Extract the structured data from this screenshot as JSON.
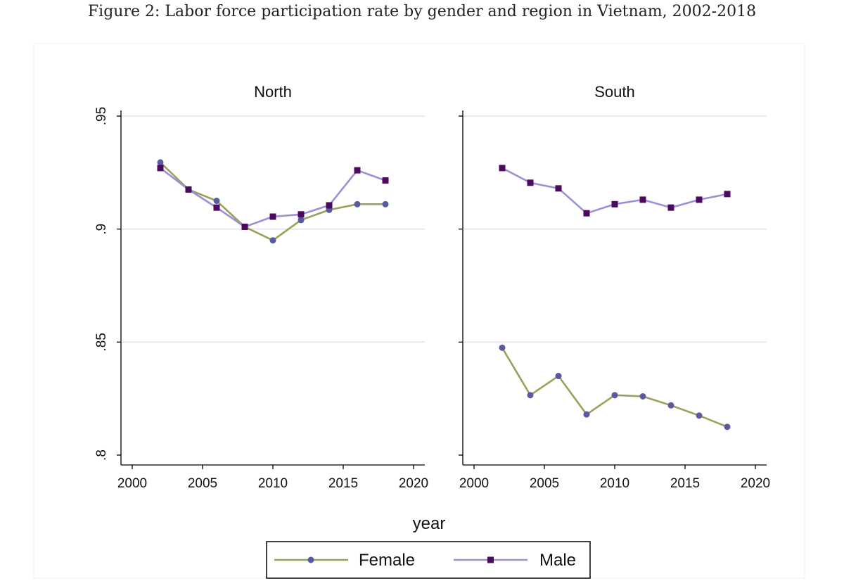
{
  "caption": "Figure 2: Labor force participation rate by gender and region in Vietnam, 2002-2018",
  "colors": {
    "female_line": "#9aa15a",
    "female_marker": "#5a5aa0",
    "male_line": "#9a90d6",
    "male_marker": "#4b0a5e",
    "grid": "#e3e3e3"
  },
  "chart_data": {
    "type": "line",
    "xlabel": "year",
    "ylabel": "",
    "xlim": [
      2000,
      2020
    ],
    "ylim": [
      0.8,
      0.95
    ],
    "xticks": [
      2000,
      2005,
      2010,
      2015,
      2020
    ],
    "xtick_labels": [
      "2000",
      "2005",
      "2010",
      "2015",
      "2020"
    ],
    "yticks": [
      0.8,
      0.85,
      0.9,
      0.95
    ],
    "ytick_labels": [
      ".8",
      ".85",
      ".9",
      ".95"
    ],
    "grid": true,
    "legend": {
      "placement": "bottom",
      "entries": [
        "Female",
        "Male"
      ]
    },
    "panels": [
      {
        "title": "North",
        "series": [
          {
            "name": "Female",
            "x": [
              2002,
              2004,
              2006,
              2008,
              2010,
              2012,
              2014,
              2016,
              2018
            ],
            "values": [
              0.9295,
              0.9175,
              0.9125,
              0.901,
              0.895,
              0.904,
              0.9085,
              0.911,
              0.911
            ]
          },
          {
            "name": "Male",
            "x": [
              2002,
              2004,
              2006,
              2008,
              2010,
              2012,
              2014,
              2016,
              2018
            ],
            "values": [
              0.927,
              0.9175,
              0.9095,
              0.901,
              0.9055,
              0.9065,
              0.9105,
              0.926,
              0.9215
            ]
          }
        ]
      },
      {
        "title": "South",
        "series": [
          {
            "name": "Female",
            "x": [
              2002,
              2004,
              2006,
              2008,
              2010,
              2012,
              2014,
              2016,
              2018
            ],
            "values": [
              0.8475,
              0.8265,
              0.835,
              0.818,
              0.8265,
              0.826,
              0.822,
              0.8175,
              0.8125
            ]
          },
          {
            "name": "Male",
            "x": [
              2002,
              2004,
              2006,
              2008,
              2010,
              2012,
              2014,
              2016,
              2018
            ],
            "values": [
              0.927,
              0.9205,
              0.918,
              0.907,
              0.911,
              0.913,
              0.9095,
              0.913,
              0.9155
            ]
          }
        ]
      }
    ]
  }
}
